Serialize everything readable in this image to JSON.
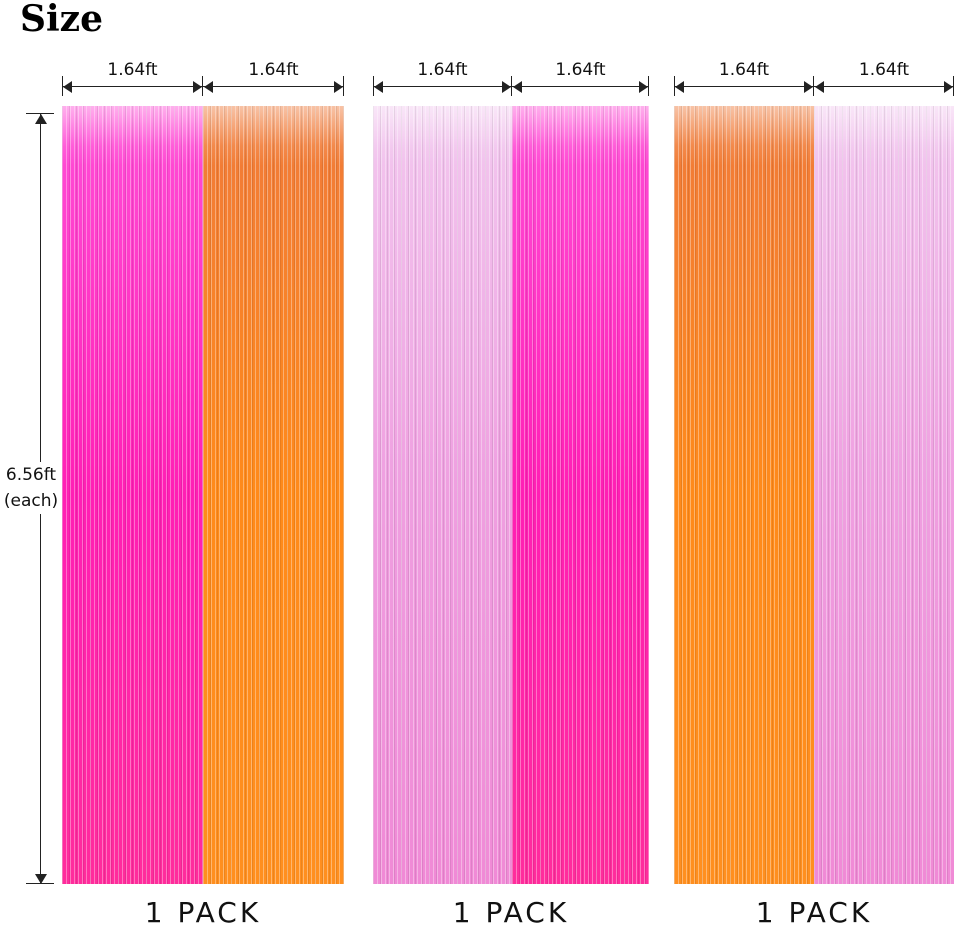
{
  "title": "Size",
  "dimension_label": "1.64ft",
  "height_label": {
    "value": "6.56ft",
    "note": "(each)"
  },
  "pack_label": "1 PACK",
  "packs": [
    {
      "panels": [
        {
          "color": "pink-magenta"
        },
        {
          "color": "orange"
        }
      ]
    },
    {
      "panels": [
        {
          "color": "light-pink"
        },
        {
          "color": "pink-magenta"
        }
      ]
    },
    {
      "panels": [
        {
          "color": "orange"
        },
        {
          "color": "light-pink"
        }
      ]
    }
  ],
  "colors": {
    "pink-magenta": [
      "#ff4fd8",
      "#ff1fb4",
      "#ff2c9c"
    ],
    "orange": [
      "#f07a3a",
      "#ff8a1a",
      "#ff8f1f"
    ],
    "light-pink": [
      "#f2c8ef",
      "#ef9fe0",
      "#f08ad6"
    ]
  }
}
